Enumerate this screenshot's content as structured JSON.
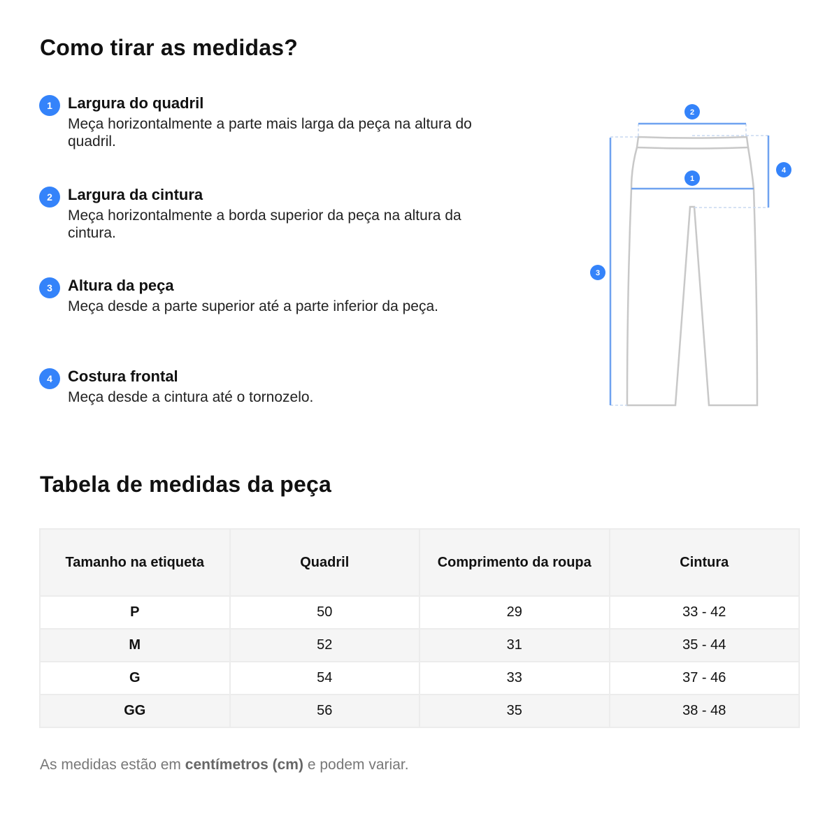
{
  "guide": {
    "title": "Como tirar as medidas?",
    "steps": [
      {
        "number": "1",
        "title": "Largura do quadril",
        "description": "Meça horizontalmente a parte mais larga da peça na altura do quadril."
      },
      {
        "number": "2",
        "title": "Largura da cintura",
        "description": "Meça horizontalmente a borda superior da peça na altura da cintura."
      },
      {
        "number": "3",
        "title": "Altura da peça",
        "description": "Meça desde a parte superior até a parte inferior da peça."
      },
      {
        "number": "4",
        "title": "Costura frontal",
        "description": "Meça desde a cintura até o tornozelo."
      }
    ]
  },
  "diagram": {
    "icon": "pants-measurement-diagram",
    "accent": "#3483fa",
    "badges": [
      "1",
      "2",
      "3",
      "4"
    ]
  },
  "table": {
    "title": "Tabela de medidas da peça",
    "headers": [
      "Tamanho na etiqueta",
      "Quadril",
      "Comprimento da roupa",
      "Cintura"
    ],
    "rows": [
      [
        "P",
        "50",
        "29",
        "33 - 42"
      ],
      [
        "M",
        "52",
        "31",
        "35 - 44"
      ],
      [
        "G",
        "54",
        "33",
        "37 - 46"
      ],
      [
        "GG",
        "56",
        "35",
        "38 - 48"
      ]
    ]
  },
  "note": {
    "prefix": "As medidas estão em ",
    "bold": "centímetros (cm)",
    "suffix": " e podem variar."
  }
}
